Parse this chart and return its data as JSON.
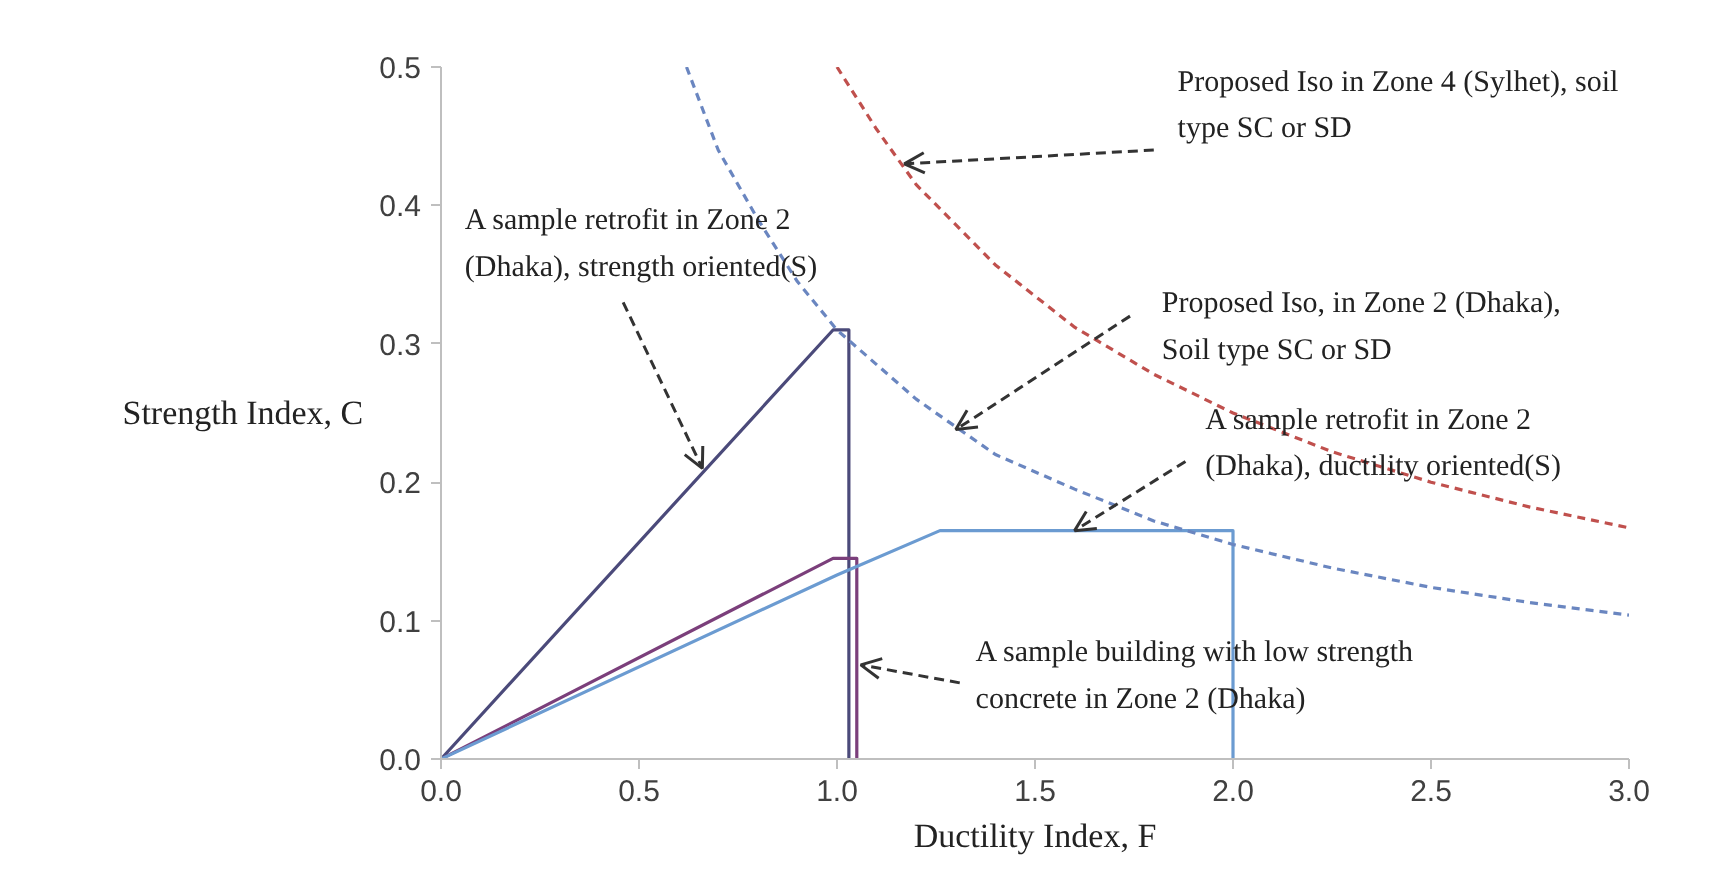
{
  "chart_data": {
    "type": "line",
    "xlabel": "Ductility Index, F",
    "ylabel": "Strength Index, C",
    "xlim": [
      0,
      3.0
    ],
    "ylim": [
      0,
      0.5
    ],
    "xticks": [
      {
        "value": 0,
        "label": "0.0"
      },
      {
        "value": 0.5,
        "label": "0.5"
      },
      {
        "value": 1,
        "label": "1.0"
      },
      {
        "value": 1.5,
        "label": "1.5"
      },
      {
        "value": 2,
        "label": "2.0"
      },
      {
        "value": 2.5,
        "label": "2.5"
      },
      {
        "value": 3,
        "label": "3.0"
      }
    ],
    "yticks": [
      {
        "value": 0,
        "label": "0.0"
      },
      {
        "value": 0.1,
        "label": "0.1"
      },
      {
        "value": 0.2,
        "label": "0.2"
      },
      {
        "value": 0.3,
        "label": "0.3"
      },
      {
        "value": 0.4,
        "label": "0.4"
      },
      {
        "value": 0.5,
        "label": "0.5"
      }
    ],
    "grid": false,
    "series": [
      {
        "color": "#4b4a7a",
        "line_style": "solid",
        "x": [
          0,
          0.99,
          1.03,
          1.03
        ],
        "values": [
          0,
          0.31,
          0.31,
          0
        ]
      },
      {
        "color": "#7b3f7b",
        "line_style": "solid",
        "x": [
          0,
          0.99,
          1.05,
          1.05
        ],
        "values": [
          0,
          0.145,
          0.145,
          0
        ]
      },
      {
        "color": "#6b9bd1",
        "line_style": "solid",
        "x": [
          0,
          1.0,
          1.26,
          2.0,
          2.0
        ],
        "values": [
          0,
          0.133,
          0.165,
          0.165,
          0
        ]
      },
      {
        "color": "#6a86c0",
        "line_style": "dashed",
        "x": [
          0.62,
          0.7,
          0.8,
          0.9,
          1.0,
          1.2,
          1.4,
          1.6,
          1.8,
          2.0,
          2.25,
          2.5,
          2.75,
          3.0
        ],
        "values": [
          0.5,
          0.44,
          0.39,
          0.345,
          0.31,
          0.26,
          0.22,
          0.195,
          0.172,
          0.155,
          0.138,
          0.124,
          0.113,
          0.104
        ]
      },
      {
        "color": "#c0504d",
        "line_style": "dashed",
        "x": [
          1.0,
          1.1,
          1.2,
          1.4,
          1.6,
          1.8,
          2.0,
          2.25,
          2.5,
          2.75,
          3.0
        ],
        "values": [
          0.5,
          0.455,
          0.415,
          0.357,
          0.312,
          0.278,
          0.25,
          0.222,
          0.2,
          0.182,
          0.167
        ]
      }
    ],
    "annotations": [
      {
        "text": "Proposed Iso in Zone 4 (Sylhet), soil type SC or SD",
        "x": 1.17,
        "y": 0.43
      },
      {
        "text": "A sample retrofit in Zone 2 (Dhaka), strength oriented(S)",
        "x": 0.66,
        "y": 0.21
      },
      {
        "text": "Proposed Iso, in Zone 2 (Dhaka), Soil type SC or SD",
        "x": 1.3,
        "y": 0.238
      },
      {
        "text": "A sample retrofit in Zone 2 (Dhaka), ductility oriented(S)",
        "x": 1.6,
        "y": 0.165
      },
      {
        "text": "A sample building with low strength concrete in Zone 2 (Dhaka)",
        "x": 1.06,
        "y": 0.068
      }
    ]
  }
}
